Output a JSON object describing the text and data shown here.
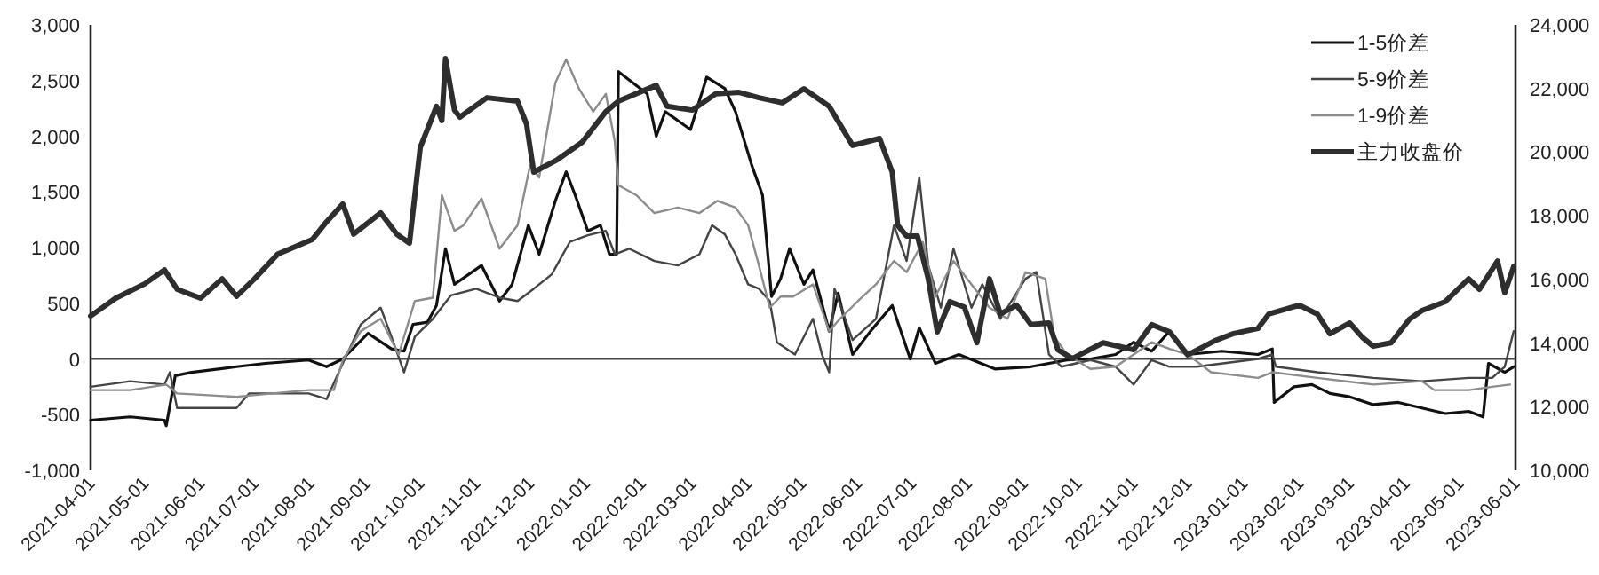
{
  "chart_data": {
    "type": "line",
    "xlim": [
      "2021-04-01",
      "2023-06-01"
    ],
    "xticks": [
      "2021-04-01",
      "2021-05-01",
      "2021-06-01",
      "2021-07-01",
      "2021-08-01",
      "2021-09-01",
      "2021-10-01",
      "2021-11-01",
      "2021-12-01",
      "2022-01-01",
      "2022-02-01",
      "2022-03-01",
      "2022-04-01",
      "2022-05-01",
      "2022-06-01",
      "2022-07-01",
      "2022-08-01",
      "2022-09-01",
      "2022-10-01",
      "2022-11-01",
      "2022-12-01",
      "2023-01-01",
      "2023-02-01",
      "2023-03-01",
      "2023-04-01",
      "2023-05-01",
      "2023-06-01"
    ],
    "ylim": [
      -1000,
      3000
    ],
    "yticks": [
      {
        "value": -1000,
        "label": "-1,000"
      },
      {
        "value": -500,
        "label": "-500"
      },
      {
        "value": 0,
        "label": "0"
      },
      {
        "value": 500,
        "label": "500"
      },
      {
        "value": 1000,
        "label": "1,000"
      },
      {
        "value": 1500,
        "label": "1,500"
      },
      {
        "value": 2000,
        "label": "2,000"
      },
      {
        "value": 2500,
        "label": "2,500"
      },
      {
        "value": 3000,
        "label": "3,000"
      }
    ],
    "y2lim": [
      10000,
      24000
    ],
    "y2ticks": [
      {
        "value": 10000,
        "label": "10,000"
      },
      {
        "value": 12000,
        "label": "12,000"
      },
      {
        "value": 14000,
        "label": "14,000"
      },
      {
        "value": 16000,
        "label": "16,000"
      },
      {
        "value": 18000,
        "label": "18,000"
      },
      {
        "value": 20000,
        "label": "20,000"
      },
      {
        "value": 22000,
        "label": "22,000"
      },
      {
        "value": 24000,
        "label": "24,000"
      }
    ],
    "legend": "top right",
    "marker": "none",
    "line_style": "solid",
    "ref_lines": [
      {
        "axis": "y",
        "value": 0,
        "color": "#444444"
      }
    ],
    "series": [
      {
        "name": "1-5价差",
        "color": "#111111",
        "x": [
          "2021-04-01",
          "2021-04-23",
          "2021-05-12",
          "2021-05-13",
          "2021-05-18",
          "2021-05-27",
          "2021-06-21",
          "2021-07-07",
          "2021-07-31",
          "2021-08-10",
          "2021-08-19",
          "2021-09-02",
          "2021-09-15",
          "2021-09-22",
          "2021-09-27",
          "2021-10-05",
          "2021-10-10",
          "2021-10-15",
          "2021-10-20",
          "2021-11-04",
          "2021-11-14",
          "2021-11-21",
          "2021-11-30",
          "2021-12-06",
          "2021-12-15",
          "2021-12-21",
          "2021-12-26",
          "2022-01-02",
          "2022-01-09",
          "2022-01-14",
          "2022-01-18",
          "2022-01-19",
          "2022-01-27",
          "2022-02-04",
          "2022-02-09",
          "2022-02-14",
          "2022-02-28",
          "2022-03-09",
          "2022-03-19",
          "2022-03-25",
          "2022-04-03",
          "2022-04-09",
          "2022-04-14",
          "2022-04-19",
          "2022-04-24",
          "2022-05-02",
          "2022-05-07",
          "2022-05-16",
          "2022-05-21",
          "2022-05-29",
          "2022-06-08",
          "2022-06-20",
          "2022-06-30",
          "2022-07-05",
          "2022-07-14",
          "2022-07-27",
          "2022-08-16",
          "2022-09-05",
          "2022-09-25",
          "2022-10-08",
          "2022-10-22",
          "2022-11-01",
          "2022-11-11",
          "2022-11-21",
          "2022-12-01",
          "2022-12-20",
          "2023-01-09",
          "2023-01-17",
          "2023-01-18",
          "2023-01-29",
          "2023-02-08",
          "2023-02-18",
          "2023-03-01",
          "2023-03-14",
          "2023-03-28",
          "2023-04-10",
          "2023-04-23",
          "2023-05-06",
          "2023-05-14",
          "2023-05-17",
          "2023-05-26",
          "2023-05-31"
        ],
        "values": [
          -550,
          -520,
          -550,
          -600,
          -150,
          -120,
          -70,
          -40,
          -10,
          -70,
          0,
          230,
          90,
          70,
          310,
          330,
          480,
          990,
          670,
          840,
          520,
          670,
          1200,
          940,
          1420,
          1680,
          1470,
          1150,
          1200,
          940,
          940,
          2580,
          2480,
          2380,
          2000,
          2220,
          2060,
          2530,
          2430,
          2220,
          1740,
          1470,
          560,
          720,
          990,
          670,
          800,
          250,
          590,
          40,
          250,
          480,
          0,
          280,
          -40,
          40,
          -90,
          -70,
          -10,
          0,
          40,
          150,
          70,
          250,
          40,
          70,
          40,
          90,
          -390,
          -250,
          -230,
          -310,
          -340,
          -410,
          -390,
          -440,
          -490,
          -470,
          -520,
          -40,
          -120,
          -70
        ]
      },
      {
        "name": "5-9价差",
        "color": "#444444",
        "x": [
          "2021-04-01",
          "2021-04-23",
          "2021-05-12",
          "2021-05-15",
          "2021-05-19",
          "2021-06-21",
          "2021-06-28",
          "2021-07-31",
          "2021-08-10",
          "2021-08-19",
          "2021-08-29",
          "2021-09-09",
          "2021-09-15",
          "2021-09-22",
          "2021-09-28",
          "2021-10-08",
          "2021-10-18",
          "2021-11-01",
          "2021-11-14",
          "2021-11-24",
          "2021-12-03",
          "2021-12-13",
          "2021-12-23",
          "2022-01-02",
          "2022-01-12",
          "2022-01-17",
          "2022-01-25",
          "2022-02-08",
          "2022-02-21",
          "2022-03-05",
          "2022-03-12",
          "2022-03-19",
          "2022-03-25",
          "2022-04-01",
          "2022-04-07",
          "2022-04-13",
          "2022-04-17",
          "2022-04-27",
          "2022-05-07",
          "2022-05-12",
          "2022-05-16",
          "2022-05-19",
          "2022-05-29",
          "2022-06-11",
          "2022-06-21",
          "2022-06-28",
          "2022-07-05",
          "2022-07-10",
          "2022-07-17",
          "2022-07-24",
          "2022-08-03",
          "2022-08-09",
          "2022-08-19",
          "2022-09-02",
          "2022-09-08",
          "2022-09-15",
          "2022-09-22",
          "2022-10-08",
          "2022-10-22",
          "2022-11-01",
          "2022-11-11",
          "2022-11-21",
          "2022-12-06",
          "2023-01-09",
          "2023-01-17",
          "2023-01-19",
          "2023-02-11",
          "2023-03-14",
          "2023-04-10",
          "2023-05-06",
          "2023-05-19",
          "2023-05-26",
          "2023-05-31"
        ],
        "values": [
          -250,
          -200,
          -230,
          -120,
          -440,
          -440,
          -310,
          -310,
          -360,
          -40,
          310,
          460,
          200,
          -120,
          200,
          360,
          570,
          630,
          550,
          520,
          630,
          760,
          1050,
          1110,
          1150,
          940,
          990,
          880,
          840,
          940,
          1200,
          1120,
          940,
          670,
          630,
          520,
          150,
          40,
          360,
          40,
          -120,
          630,
          170,
          360,
          1200,
          880,
          1630,
          840,
          460,
          990,
          460,
          670,
          360,
          720,
          780,
          40,
          -70,
          -10,
          -70,
          -230,
          -10,
          -70,
          -70,
          0,
          40,
          -70,
          -120,
          -170,
          -200,
          -170,
          -170,
          -70,
          250
        ]
      },
      {
        "name": "1-9价差",
        "color": "#8c8c8c",
        "x": [
          "2021-04-01",
          "2021-04-23",
          "2021-05-13",
          "2021-05-19",
          "2021-06-21",
          "2021-07-31",
          "2021-08-14",
          "2021-08-19",
          "2021-08-29",
          "2021-09-09",
          "2021-09-19",
          "2021-09-28",
          "2021-10-08",
          "2021-10-13",
          "2021-10-20",
          "2021-10-25",
          "2021-11-04",
          "2021-11-14",
          "2021-11-24",
          "2021-12-01",
          "2021-12-06",
          "2021-12-15",
          "2021-12-21",
          "2021-12-28",
          "2022-01-05",
          "2022-01-12",
          "2022-01-17",
          "2022-01-19",
          "2022-01-29",
          "2022-02-08",
          "2022-02-21",
          "2022-03-05",
          "2022-03-15",
          "2022-03-25",
          "2022-04-01",
          "2022-04-07",
          "2022-04-13",
          "2022-04-19",
          "2022-04-26",
          "2022-05-07",
          "2022-05-16",
          "2022-05-22",
          "2022-06-01",
          "2022-06-11",
          "2022-06-21",
          "2022-06-28",
          "2022-07-07",
          "2022-07-14",
          "2022-07-24",
          "2022-08-03",
          "2022-08-13",
          "2022-08-23",
          "2022-09-02",
          "2022-09-13",
          "2022-09-18",
          "2022-09-25",
          "2022-10-08",
          "2022-10-22",
          "2022-11-01",
          "2022-11-11",
          "2022-11-21",
          "2022-12-01",
          "2022-12-14",
          "2023-01-09",
          "2023-01-17",
          "2023-02-11",
          "2023-03-14",
          "2023-04-10",
          "2023-04-17",
          "2023-05-06",
          "2023-05-19",
          "2023-05-29"
        ],
        "values": [
          -280,
          -280,
          -230,
          -310,
          -340,
          -280,
          -280,
          -10,
          250,
          360,
          40,
          520,
          550,
          1470,
          1150,
          1200,
          1440,
          990,
          1200,
          1740,
          1630,
          2480,
          2690,
          2430,
          2220,
          2380,
          1950,
          1560,
          1470,
          1310,
          1360,
          1310,
          1420,
          1360,
          1200,
          840,
          460,
          560,
          560,
          670,
          250,
          360,
          520,
          670,
          880,
          780,
          1050,
          560,
          880,
          670,
          460,
          360,
          780,
          720,
          200,
          40,
          -90,
          -70,
          40,
          150,
          90,
          40,
          -120,
          -170,
          -120,
          -170,
          -230,
          -200,
          -280,
          -280,
          -250,
          -230
        ]
      },
      {
        "name": "主力收盘价",
        "color": "#2e2e2e",
        "axis": "y2",
        "x": [
          "2021-04-01",
          "2021-04-15",
          "2021-05-01",
          "2021-05-12",
          "2021-05-19",
          "2021-06-01",
          "2021-06-13",
          "2021-06-21",
          "2021-07-01",
          "2021-07-14",
          "2021-08-02",
          "2021-08-10",
          "2021-08-19",
          "2021-08-25",
          "2021-09-09",
          "2021-09-18",
          "2021-09-25",
          "2021-10-01",
          "2021-10-10",
          "2021-10-13",
          "2021-10-15",
          "2021-10-20",
          "2021-10-23",
          "2021-11-07",
          "2021-11-24",
          "2021-11-29",
          "2021-12-03",
          "2021-12-16",
          "2021-12-30",
          "2022-01-12",
          "2022-01-19",
          "2022-02-09",
          "2022-02-15",
          "2022-03-01",
          "2022-03-14",
          "2022-03-27",
          "2022-04-07",
          "2022-04-20",
          "2022-05-02",
          "2022-05-16",
          "2022-05-29",
          "2022-06-13",
          "2022-06-20",
          "2022-06-23",
          "2022-06-28",
          "2022-07-04",
          "2022-07-10",
          "2022-07-15",
          "2022-07-22",
          "2022-07-30",
          "2022-08-06",
          "2022-08-13",
          "2022-08-19",
          "2022-08-28",
          "2022-09-05",
          "2022-09-15",
          "2022-09-20",
          "2022-09-28",
          "2022-10-15",
          "2022-11-01",
          "2022-11-11",
          "2022-11-21",
          "2022-12-01",
          "2022-12-16",
          "2022-12-26",
          "2023-01-09",
          "2023-01-15",
          "2023-02-01",
          "2023-02-11",
          "2023-02-18",
          "2023-03-01",
          "2023-03-08",
          "2023-03-14",
          "2023-03-24",
          "2023-04-03",
          "2023-04-10",
          "2023-04-23",
          "2023-05-06",
          "2023-05-12",
          "2023-05-22",
          "2023-05-26",
          "2023-05-31"
        ],
        "values": [
          14850,
          15410,
          15860,
          16300,
          15690,
          15410,
          16020,
          15470,
          16020,
          16800,
          17250,
          17810,
          18370,
          17420,
          18090,
          17420,
          17140,
          20150,
          21440,
          20990,
          22940,
          21320,
          21100,
          21710,
          21600,
          20880,
          19370,
          19760,
          20320,
          21270,
          21600,
          22100,
          21440,
          21320,
          21830,
          21880,
          21710,
          21550,
          21990,
          21440,
          20210,
          20430,
          19370,
          17700,
          17360,
          17360,
          16020,
          14350,
          15300,
          15130,
          14010,
          16020,
          14910,
          15190,
          14580,
          14630,
          13790,
          13510,
          14010,
          13790,
          14580,
          14350,
          13630,
          14070,
          14290,
          14460,
          14910,
          15190,
          14910,
          14290,
          14630,
          14180,
          13900,
          14010,
          14740,
          15020,
          15300,
          16020,
          15690,
          16580,
          15580,
          16410
        ]
      }
    ]
  }
}
